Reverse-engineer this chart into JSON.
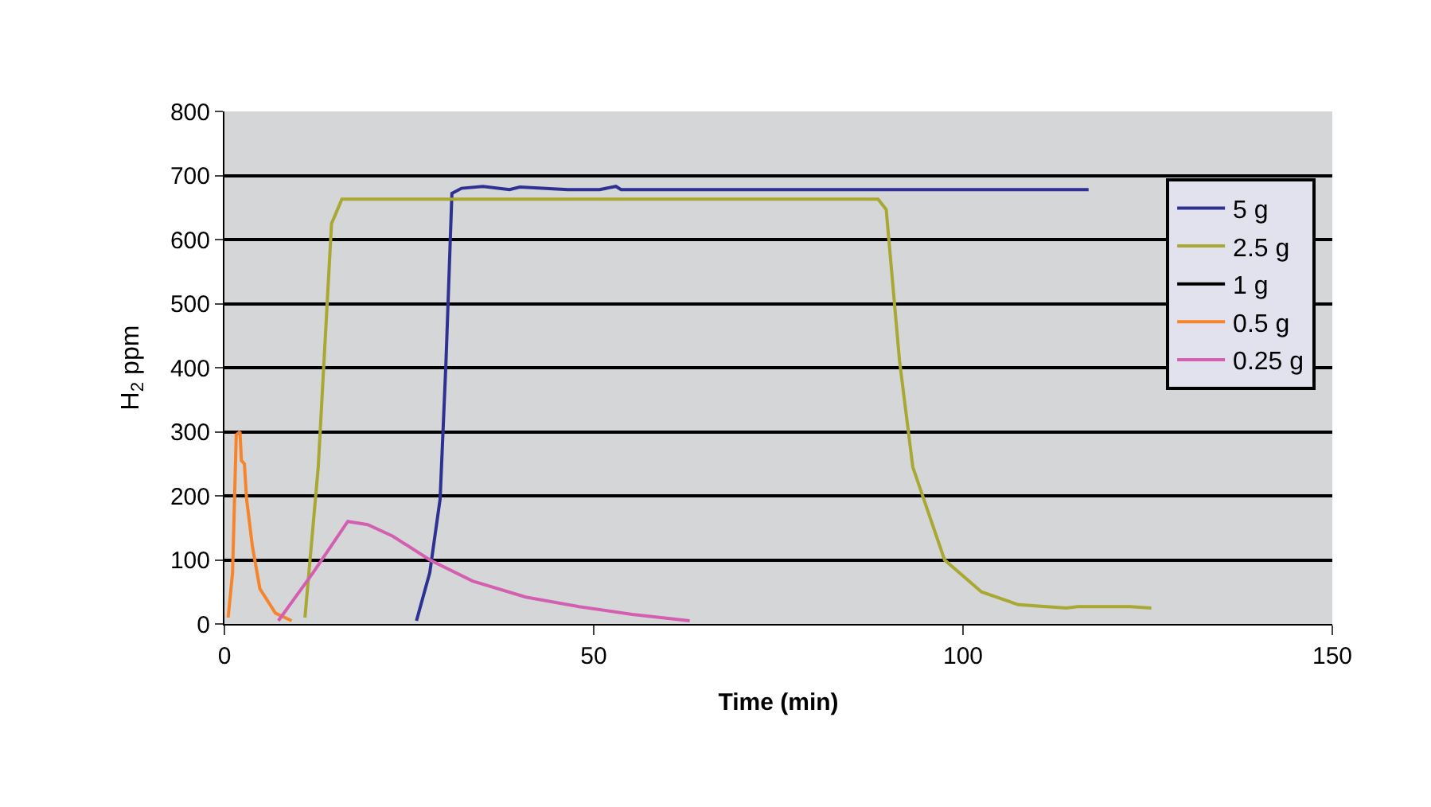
{
  "chart_data": {
    "type": "line",
    "xlabel": "Time (min)",
    "ylabel": "H$_{2}$ ppm",
    "xlim": [
      0,
      150
    ],
    "xticks": [
      0,
      50,
      100,
      150
    ],
    "ylim": [
      0,
      800
    ],
    "yticks": [
      0,
      100,
      200,
      300,
      400,
      500,
      600,
      700,
      800
    ],
    "grid": "y",
    "legend": "top right",
    "marker": "none",
    "line_style": "solid",
    "series": [
      {
        "name": "5 g",
        "color": "#2e3192",
        "x": [
          26,
          27.8,
          29.2,
          30,
          30.8,
          32.1,
          35,
          38.6,
          40,
          46.5,
          50.8,
          53,
          53.7,
          117
        ],
        "values": [
          5,
          80,
          195,
          410,
          672,
          680,
          683,
          678,
          682,
          678,
          678,
          683,
          678,
          678
        ]
      },
      {
        "name": "2.5 g",
        "color": "#a8a832",
        "x": [
          10.9,
          12.7,
          14.5,
          15.9,
          88.5,
          89.6,
          91.4,
          93.2,
          97.5,
          102.5,
          107.5,
          114,
          115.5,
          122.6,
          125.5
        ],
        "values": [
          10,
          245,
          625,
          663,
          663,
          647,
          411,
          245,
          100,
          50,
          30,
          25,
          27,
          27,
          25
        ]
      },
      {
        "name": "1 g",
        "color": "#000000"
      },
      {
        "name": "0.5 g",
        "color": "#f7842a",
        "x": [
          0.5,
          1.1,
          1.6,
          2.1,
          2.3,
          2.7,
          3.0,
          3.8,
          4.8,
          6.9,
          9.1
        ],
        "values": [
          10,
          80,
          295,
          300,
          255,
          250,
          195,
          120,
          55,
          17,
          5
        ]
      },
      {
        "name": "0.25 g",
        "color": "#d45fb0",
        "x": [
          7.3,
          12.0,
          16.7,
          19.4,
          22.8,
          27.8,
          33.6,
          40.8,
          48,
          55.2,
          63
        ],
        "values": [
          5,
          80,
          160,
          155,
          137,
          100,
          67,
          42,
          27,
          15,
          5
        ]
      }
    ]
  }
}
